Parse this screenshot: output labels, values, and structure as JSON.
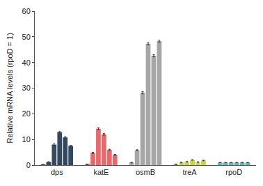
{
  "chart_data": {
    "type": "bar",
    "y_label": "Relative mRNA levels (rpoD = 1)",
    "categories": [
      "dps",
      "katE",
      "osmB",
      "treA",
      "rpoD"
    ],
    "colors": [
      "#34495e",
      "#e8696b",
      "#a6a6a6",
      "#c9d445",
      "#5fb3b3"
    ],
    "values": [
      [
        0.2,
        1.2,
        8.0,
        12.8,
        10.8,
        7.5
      ],
      [
        0.3,
        4.8,
        14.2,
        12.0,
        6.0,
        4.0
      ],
      [
        1.0,
        5.8,
        28.2,
        47.3,
        42.6,
        48.3
      ],
      [
        0.3,
        1.0,
        1.3,
        2.0,
        1.2,
        1.8
      ],
      [
        1.0,
        1.0,
        1.0,
        1.0,
        1.0,
        1.0
      ]
    ],
    "errors": [
      [
        0.05,
        0.1,
        0.3,
        0.3,
        0.3,
        0.2
      ],
      [
        0.05,
        0.2,
        0.3,
        0.3,
        0.2,
        0.2
      ],
      [
        0.1,
        0.2,
        0.4,
        0.4,
        0.4,
        0.4
      ],
      [
        0.05,
        0.1,
        0.1,
        0.1,
        0.1,
        0.1
      ],
      [
        0.0,
        0.0,
        0.0,
        0.0,
        0.0,
        0.0
      ]
    ],
    "ylim": [
      0,
      60
    ],
    "yticks": [
      0,
      10,
      20,
      30,
      40,
      50,
      60
    ],
    "grid": false
  }
}
